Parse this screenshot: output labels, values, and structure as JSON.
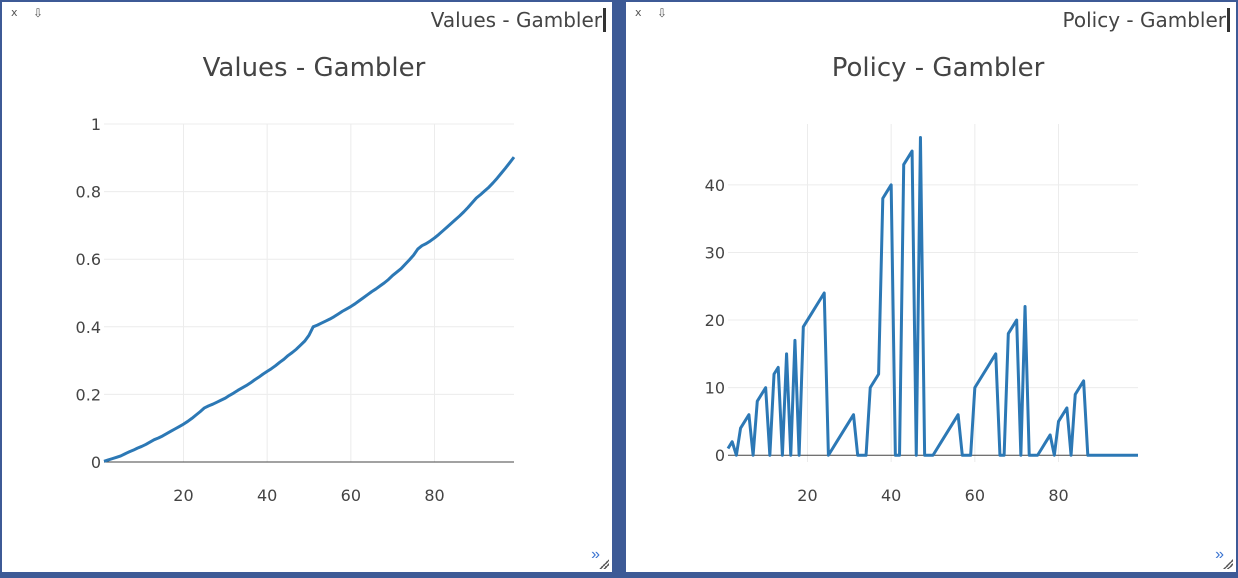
{
  "windows": [
    {
      "window_title": "Values - Gambler",
      "close_label": "x",
      "pin_label": "⇩",
      "more_label": "»"
    },
    {
      "window_title": "Policy - Gambler",
      "close_label": "x",
      "pin_label": "⇩",
      "more_label": "»"
    }
  ],
  "chart_data": [
    {
      "type": "line",
      "title": "Values - Gambler",
      "xlabel": "",
      "ylabel": "",
      "xlim": [
        1,
        99
      ],
      "ylim": [
        0,
        1
      ],
      "xticks": [
        20,
        40,
        60,
        80
      ],
      "yticks": [
        0,
        0.2,
        0.4,
        0.6,
        0.8,
        1
      ],
      "grid": true,
      "series": [
        {
          "x": [
            1,
            2,
            3,
            4,
            5,
            6,
            7,
            8,
            9,
            10,
            11,
            12,
            13,
            14,
            15,
            16,
            17,
            18,
            19,
            20,
            21,
            22,
            23,
            24,
            25,
            26,
            27,
            28,
            29,
            30,
            31,
            32,
            33,
            34,
            35,
            36,
            37,
            38,
            39,
            40,
            41,
            42,
            43,
            44,
            45,
            46,
            47,
            48,
            49,
            50,
            51,
            52,
            53,
            54,
            55,
            56,
            57,
            58,
            59,
            60,
            61,
            62,
            63,
            64,
            65,
            66,
            67,
            68,
            69,
            70,
            71,
            72,
            73,
            74,
            75,
            76,
            77,
            78,
            79,
            80,
            81,
            82,
            83,
            84,
            85,
            86,
            87,
            88,
            89,
            90,
            91,
            92,
            93,
            94,
            95,
            96,
            97,
            98,
            99
          ],
          "values": [
            0.002,
            0.006,
            0.01,
            0.014,
            0.018,
            0.024,
            0.03,
            0.035,
            0.041,
            0.046,
            0.052,
            0.059,
            0.066,
            0.071,
            0.077,
            0.084,
            0.091,
            0.098,
            0.105,
            0.112,
            0.12,
            0.129,
            0.139,
            0.149,
            0.16,
            0.166,
            0.171,
            0.177,
            0.183,
            0.189,
            0.197,
            0.204,
            0.212,
            0.219,
            0.226,
            0.234,
            0.243,
            0.251,
            0.26,
            0.268,
            0.276,
            0.285,
            0.295,
            0.304,
            0.315,
            0.324,
            0.334,
            0.346,
            0.358,
            0.375,
            0.4,
            0.405,
            0.411,
            0.417,
            0.423,
            0.43,
            0.438,
            0.446,
            0.453,
            0.46,
            0.468,
            0.477,
            0.486,
            0.495,
            0.504,
            0.512,
            0.521,
            0.53,
            0.54,
            0.552,
            0.562,
            0.572,
            0.585,
            0.598,
            0.612,
            0.63,
            0.64,
            0.646,
            0.654,
            0.663,
            0.673,
            0.684,
            0.695,
            0.706,
            0.717,
            0.728,
            0.74,
            0.753,
            0.767,
            0.781,
            0.791,
            0.802,
            0.813,
            0.826,
            0.84,
            0.855,
            0.87,
            0.886,
            0.902
          ]
        }
      ]
    },
    {
      "type": "line",
      "title": "Policy - Gambler",
      "xlabel": "",
      "ylabel": "",
      "xlim": [
        1,
        99
      ],
      "ylim": [
        -1,
        49
      ],
      "xticks": [
        20,
        40,
        60,
        80
      ],
      "yticks": [
        0,
        10,
        20,
        30,
        40
      ],
      "grid": true,
      "series": [
        {
          "x": [
            1,
            2,
            3,
            4,
            5,
            6,
            7,
            8,
            9,
            10,
            11,
            12,
            13,
            14,
            15,
            16,
            17,
            18,
            19,
            20,
            21,
            22,
            23,
            24,
            25,
            26,
            27,
            28,
            29,
            30,
            31,
            32,
            33,
            34,
            35,
            36,
            37,
            38,
            39,
            40,
            41,
            42,
            43,
            44,
            45,
            46,
            47,
            48,
            49,
            50,
            51,
            52,
            53,
            54,
            55,
            56,
            57,
            58,
            59,
            60,
            61,
            62,
            63,
            64,
            65,
            66,
            67,
            68,
            69,
            70,
            71,
            72,
            73,
            74,
            75,
            76,
            77,
            78,
            79,
            80,
            81,
            82,
            83,
            84,
            85,
            86,
            87,
            88,
            89,
            90,
            91,
            92,
            93,
            94,
            95,
            96,
            97,
            98,
            99
          ],
          "values": [
            1,
            2,
            0,
            4,
            5,
            6,
            0,
            8,
            9,
            10,
            0,
            12,
            13,
            0,
            15,
            0,
            17,
            0,
            19,
            20,
            21,
            22,
            23,
            24,
            0,
            1,
            2,
            3,
            4,
            5,
            6,
            0,
            0,
            0,
            10,
            11,
            12,
            38,
            39,
            40,
            0,
            0,
            43,
            44,
            45,
            0,
            47,
            0,
            0,
            0,
            1,
            2,
            3,
            4,
            5,
            6,
            0,
            0,
            0,
            10,
            11,
            12,
            13,
            14,
            15,
            0,
            0,
            18,
            19,
            20,
            0,
            22,
            0,
            0,
            0,
            1,
            2,
            3,
            0,
            5,
            6,
            7,
            0,
            9,
            10,
            11,
            0,
            0,
            0,
            0,
            0,
            0,
            0,
            0,
            0,
            0,
            0,
            0,
            0
          ]
        }
      ]
    }
  ]
}
